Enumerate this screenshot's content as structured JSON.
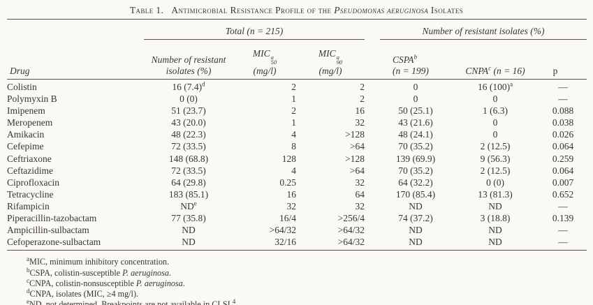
{
  "title": {
    "prefix": "Table 1.",
    "segment1": "Antimicrobial Resistance Profile of the ",
    "italic_segment": "Pseudomonas aeruginosa",
    "segment2": " Isolates"
  },
  "table": {
    "group_headers": [
      {
        "label": "Total",
        "n": "(n = 215)"
      },
      {
        "label": "Number of resistant isolates (%)"
      }
    ],
    "columns": [
      {
        "label": "Drug"
      },
      {
        "line1": "Number of resistant",
        "line2": "isolates (%)"
      },
      {
        "label": "MIC",
        "sup": "a",
        "sub": "50",
        "unit": "(mg/l)"
      },
      {
        "label": "MIC",
        "sup": "a",
        "sub": "90",
        "unit": "(mg/l)"
      },
      {
        "label": "CSPA",
        "sup": "b",
        "n": "(n = 199)"
      },
      {
        "label": "CNPA",
        "sup": "c",
        "n": "(n = 16)"
      },
      {
        "label": "p"
      }
    ],
    "rows": [
      {
        "drug": "Colistin",
        "total": "16 (7.4)",
        "total_sup": "d",
        "mic50": "2",
        "mic90": "2",
        "cspa": "0",
        "cnpa": "16 (100)",
        "cnpa_sup": "a",
        "p": "—"
      },
      {
        "drug": "Polymyxin B",
        "total": "0 (0)",
        "mic50": "1",
        "mic90": "2",
        "cspa": "0",
        "cnpa": "0",
        "p": "—"
      },
      {
        "drug": "Imipenem",
        "total": "51 (23.7)",
        "mic50": "2",
        "mic90": "16",
        "cspa": "50 (25.1)",
        "cnpa": "1 (6.3)",
        "p": "0.088"
      },
      {
        "drug": "Meropenem",
        "total": "43 (20.0)",
        "mic50": "1",
        "mic90": "32",
        "cspa": "43 (21.6)",
        "cnpa": "0",
        "p": "0.038"
      },
      {
        "drug": "Amikacin",
        "total": "48 (22.3)",
        "mic50": "4",
        "mic90": ">128",
        "cspa": "48 (24.1)",
        "cnpa": "0",
        "p": "0.026"
      },
      {
        "drug": "Cefepime",
        "total": "72 (33.5)",
        "mic50": "8",
        "mic90": ">64",
        "cspa": "70 (35.2)",
        "cnpa": "2 (12.5)",
        "p": "0.064"
      },
      {
        "drug": "Ceftriaxone",
        "total": "148 (68.8)",
        "mic50": "128",
        "mic90": ">128",
        "cspa": "139 (69.9)",
        "cnpa": "9 (56.3)",
        "p": "0.259"
      },
      {
        "drug": "Ceftazidime",
        "total": "72 (33.5)",
        "mic50": "4",
        "mic90": ">64",
        "cspa": "70 (35.2)",
        "cnpa": "2 (12.5)",
        "p": "0.064"
      },
      {
        "drug": "Ciprofloxacin",
        "total": "64 (29.8)",
        "mic50": "0.25",
        "mic90": "32",
        "cspa": "64 (32.2)",
        "cnpa": "0 (0)",
        "p": "0.007"
      },
      {
        "drug": "Tetracycline",
        "total": "183 (85.1)",
        "mic50": "16",
        "mic90": "64",
        "cspa": "170 (85.4)",
        "cnpa": "13 (81.3)",
        "p": "0.652"
      },
      {
        "drug": "Rifampicin",
        "total": "ND",
        "total_sup": "e",
        "mic50": "32",
        "mic90": "32",
        "cspa": "ND",
        "cnpa": "ND",
        "p": "—"
      },
      {
        "drug": "Piperacillin-tazobactam",
        "total": "77 (35.8)",
        "mic50": "16/4",
        "mic90": ">256/4",
        "cspa": "74 (37.2)",
        "cnpa": "3 (18.8)",
        "p": "0.139"
      },
      {
        "drug": "Ampicillin-sulbactam",
        "total": "ND",
        "mic50": ">64/32",
        "mic90": ">64/32",
        "cspa": "ND",
        "cnpa": "ND",
        "p": "—"
      },
      {
        "drug": "Cefoperazone-sulbactam",
        "total": "ND",
        "mic50": "32/16",
        "mic90": ">64/32",
        "cspa": "ND",
        "cnpa": "ND",
        "p": "—"
      }
    ]
  },
  "footnotes": [
    {
      "marker": "a",
      "parts": [
        {
          "t": "MIC, minimum inhibitory concentration."
        }
      ]
    },
    {
      "marker": "b",
      "parts": [
        {
          "t": "CSPA, colistin-susceptible "
        },
        {
          "t": "P. aeruginosa",
          "italic": true
        },
        {
          "t": "."
        }
      ]
    },
    {
      "marker": "c",
      "parts": [
        {
          "t": "CNPA, colistin-nonsusceptible "
        },
        {
          "t": "P. aeruginosa",
          "italic": true
        },
        {
          "t": "."
        }
      ]
    },
    {
      "marker": "d",
      "parts": [
        {
          "t": "CNPA, isolates (MIC, ≥4 mg/l)."
        }
      ]
    },
    {
      "marker": "e",
      "parts": [
        {
          "t": "ND, not determined. Breakpoints are not available in CLSI."
        },
        {
          "t": "4",
          "sup": true
        }
      ]
    }
  ],
  "colors": {
    "background": "#faf9f5",
    "text": "#393530",
    "rule": "#5a554e"
  }
}
